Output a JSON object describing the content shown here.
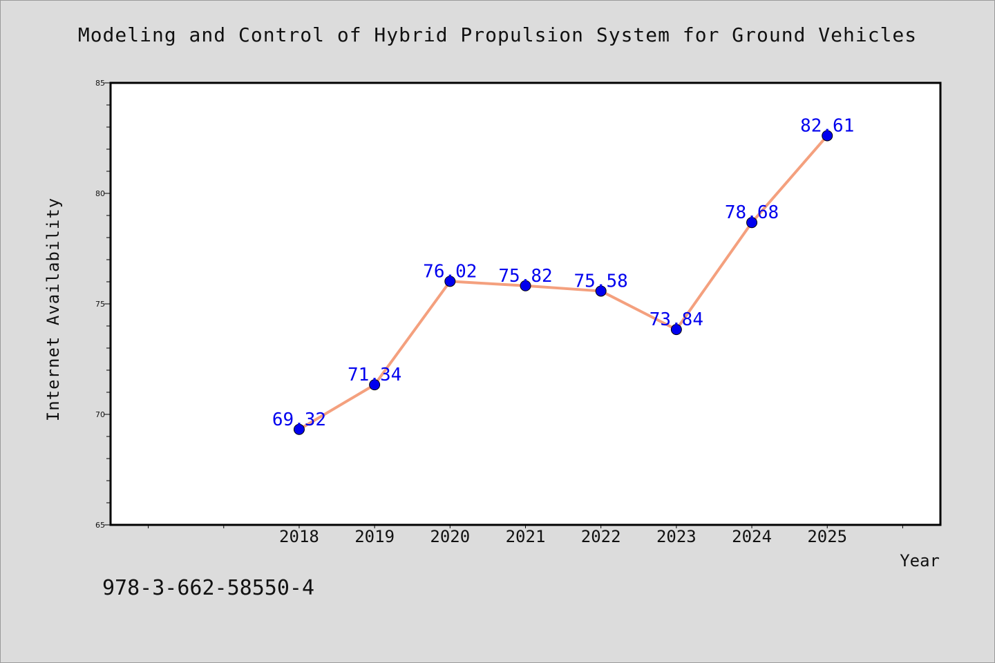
{
  "page": {
    "isbn": "978-3-662-58550-4"
  },
  "colors": {
    "background": "#dcdcdc",
    "plot_background": "#ffffff",
    "line": "#f4a07e",
    "marker": "#0000ee",
    "data_label": "#0000ee"
  },
  "chart_data": {
    "type": "line",
    "title": "Modeling and Control of Hybrid Propulsion System for Ground Vehicles",
    "xlabel": "Year",
    "ylabel": "Internet Availability",
    "x": [
      2018,
      2019,
      2020,
      2021,
      2022,
      2023,
      2024,
      2025
    ],
    "x_tick_labels": [
      "2018",
      "2019",
      "2020",
      "2021",
      "2022",
      "2023",
      "2024",
      "2025"
    ],
    "xlim": [
      2015.5,
      2026.5
    ],
    "y_tick_labels": [
      "65",
      "70",
      "75",
      "80",
      "85"
    ],
    "ylim": [
      65,
      85
    ],
    "series": [
      {
        "values": [
          69.32,
          71.34,
          76.02,
          75.82,
          75.58,
          73.84,
          78.68,
          82.61
        ],
        "labels": [
          "69.32",
          "71.34",
          "76.02",
          "75.82",
          "75.58",
          "73.84",
          "78.68",
          "82.61"
        ]
      }
    ],
    "grid": false,
    "markers": true,
    "data_labels": true
  }
}
